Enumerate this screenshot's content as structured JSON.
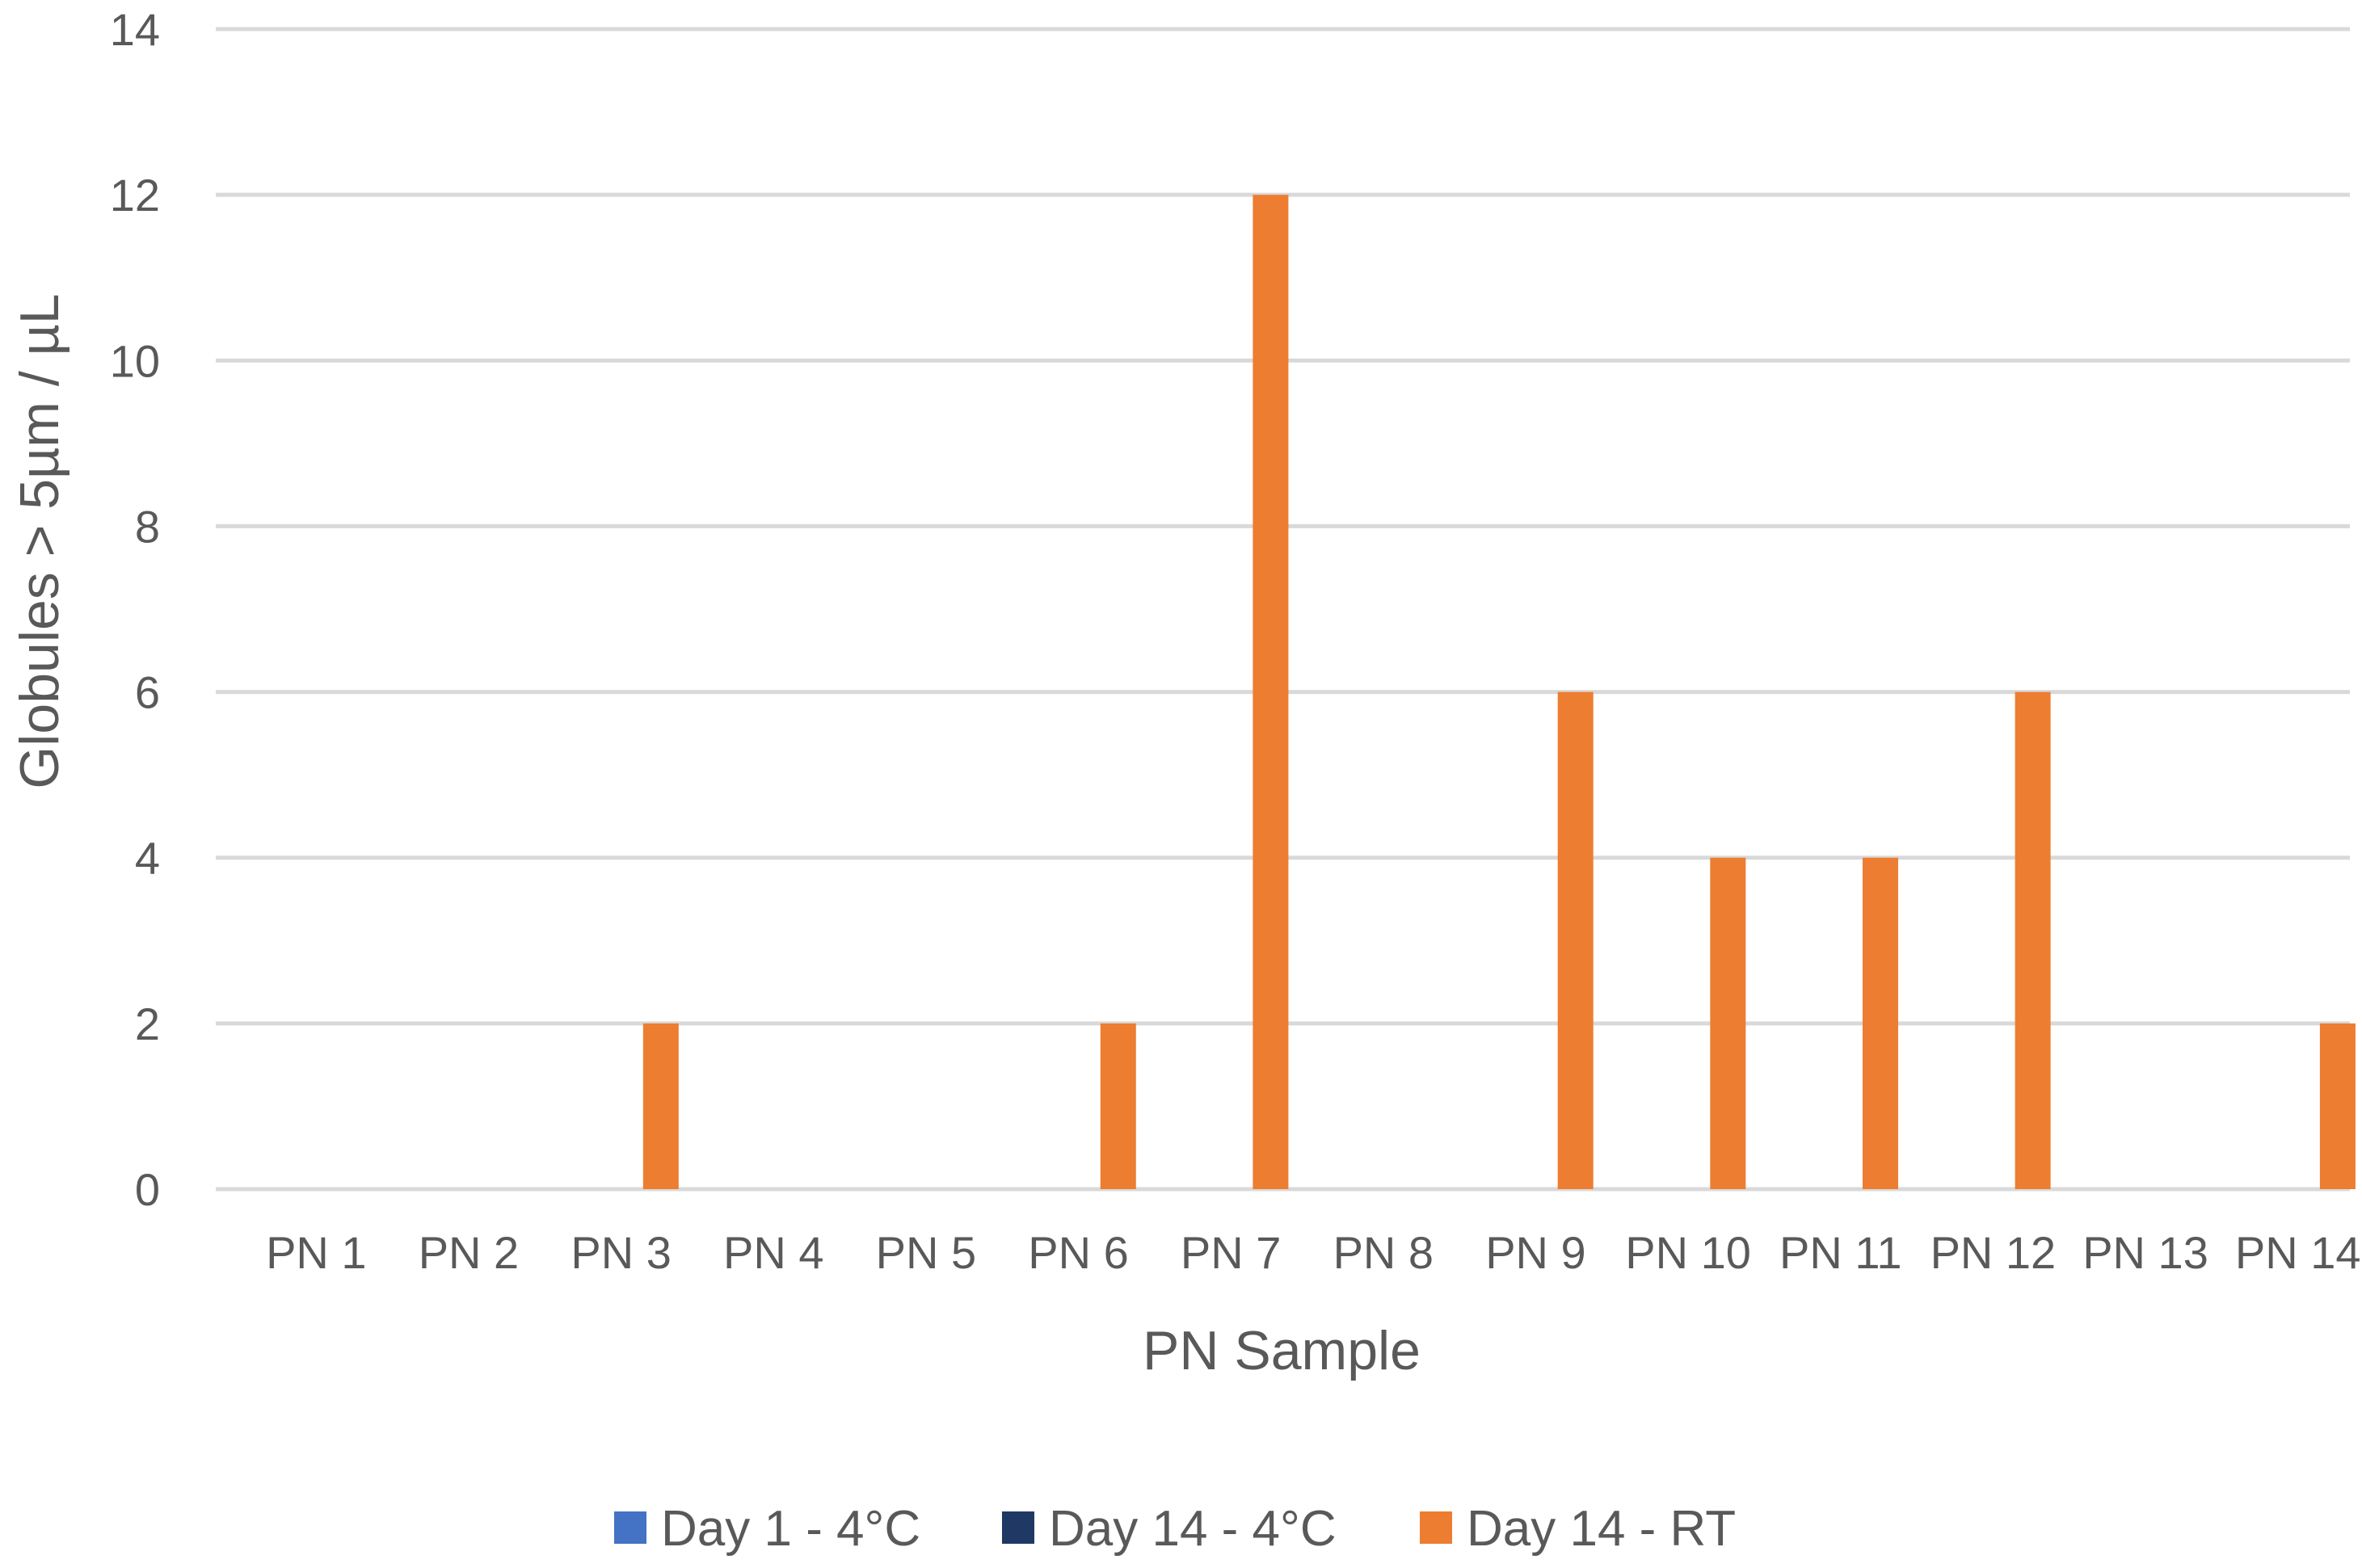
{
  "chart_data": {
    "type": "bar",
    "title": "",
    "xlabel": "PN Sample",
    "ylabel": "Globules > 5µm / µL",
    "ylim": [
      0,
      14
    ],
    "yticks": [
      0,
      2,
      4,
      6,
      8,
      10,
      12,
      14
    ],
    "grid": true,
    "legend_position": "bottom",
    "categories": [
      "PN 1",
      "PN 2",
      "PN 3",
      "PN 4",
      "PN 5",
      "PN 6",
      "PN 7",
      "PN 8",
      "PN 9",
      "PN 10",
      "PN 11",
      "PN 12",
      "PN 13",
      "PN 14"
    ],
    "series": [
      {
        "name": "Day 1 - 4°C",
        "color": "#4472C4",
        "values": [
          0,
          0,
          0,
          0,
          0,
          0,
          0,
          0,
          0,
          0,
          0,
          0,
          0,
          0
        ]
      },
      {
        "name": "Day 14 - 4°C",
        "color": "#203864",
        "values": [
          0,
          0,
          0,
          0,
          0,
          0,
          0,
          0,
          0,
          0,
          0,
          0,
          0,
          0
        ]
      },
      {
        "name": "Day 14 - RT",
        "color": "#ED7D31",
        "values": [
          0,
          0,
          2,
          0,
          0,
          2,
          12,
          0,
          6,
          4,
          4,
          6,
          0,
          2
        ]
      }
    ]
  }
}
